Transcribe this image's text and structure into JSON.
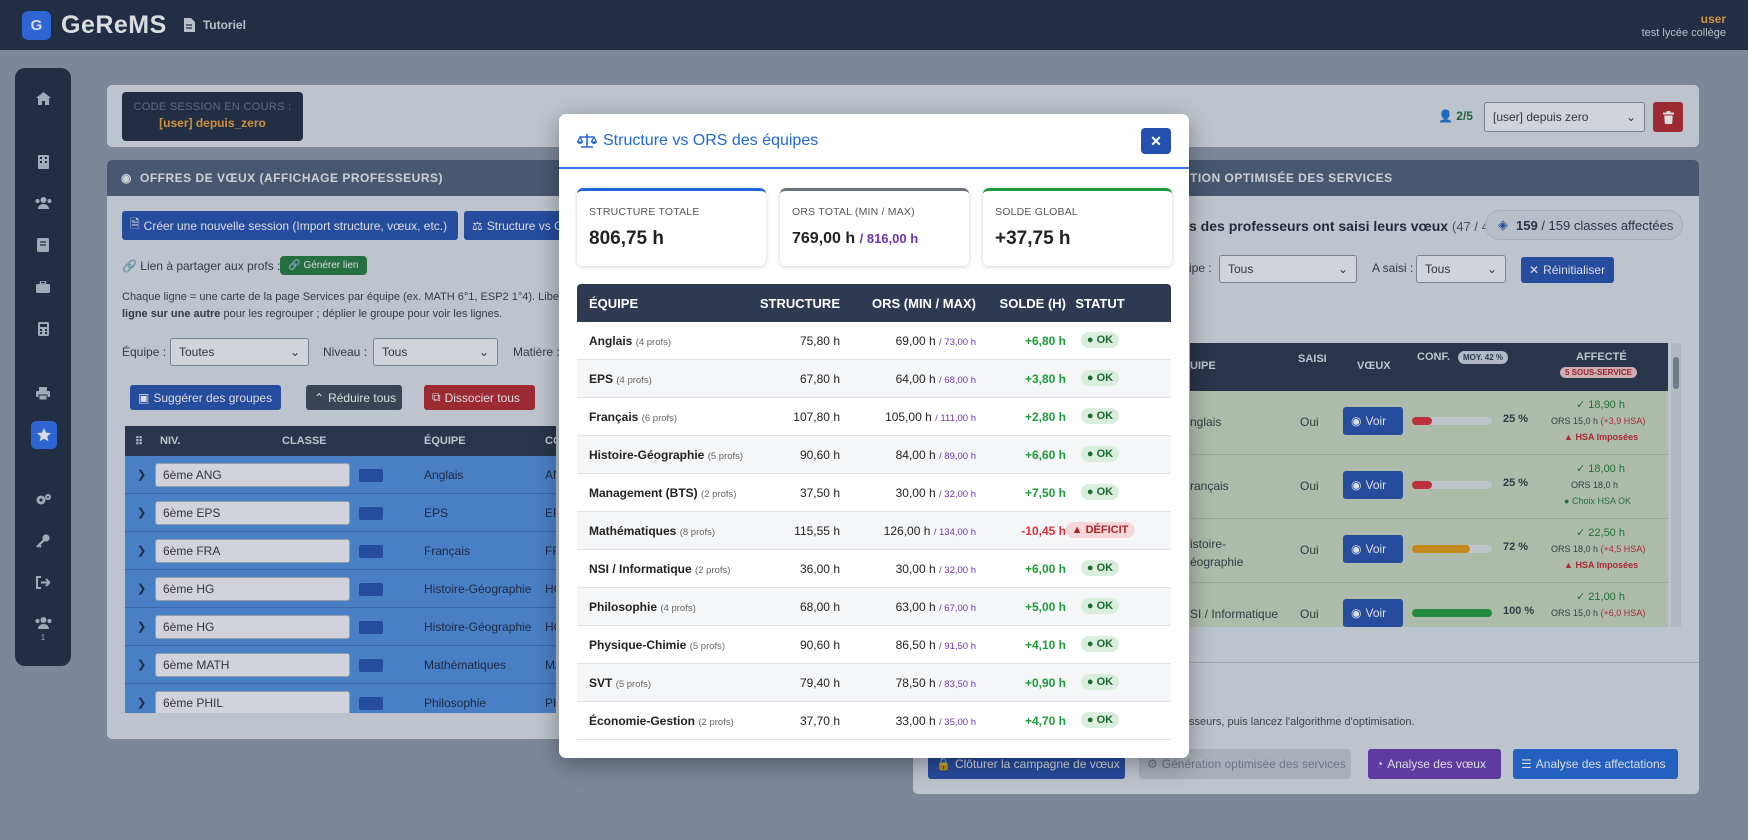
{
  "app": {
    "brand": "GeReMS",
    "logo_letter": "G",
    "tutorial": "Tutoriel",
    "user_name": "user",
    "user_establishment": "test lycée collège"
  },
  "session": {
    "label": "CODE SESSION EN COURS :",
    "value": "[user] depuis_zero",
    "profs_count": "2/5",
    "session_select": "[user] depuis zero"
  },
  "left_panel": {
    "title": "OFFRES DE VŒUX (AFFICHAGE PROFESSEURS)",
    "btn_new_session": "Créer une nouvelle session (Import structure, vœux, etc.)",
    "btn_structure": "Structure vs ORS des équipes",
    "share_label": "Lien à partager aux profs :",
    "share_btn": "Générer lien",
    "help_line1": "Chaque ligne = une carte de la page Services par équipe (ex. MATH 6°1, ESP2 1°4). Libellez",
    "help_bold": "ligne sur une autre",
    "help_line2": "pour les regrouper ; déplier le groupe pour voir les lignes.",
    "filter_team_label": "Équipe :",
    "filter_team_value": "Toutes",
    "filter_level_label": "Niveau :",
    "filter_level_value": "Tous",
    "filter_subject_label": "Matière :",
    "btn_suggest": "Suggérer des groupes",
    "btn_collapse": "Réduire tous",
    "btn_dissociate": "Dissocier tous",
    "columns": {
      "niv": "NIV.",
      "classe": "CLASSE",
      "equipe": "ÉQUIPE",
      "code": "CO"
    },
    "rows": [
      {
        "classe": "6ème  ANG",
        "equipe": "Anglais",
        "code": "AN"
      },
      {
        "classe": "6ème  EPS",
        "equipe": "EPS",
        "code": "EP"
      },
      {
        "classe": "6ème  FRA",
        "equipe": "Français",
        "code": "FR"
      },
      {
        "classe": "6ème  HG",
        "equipe": "Histoire-Géographie",
        "code": "HG"
      },
      {
        "classe": "6ème  HG",
        "equipe": "Histoire-Géographie",
        "code": "HG"
      },
      {
        "classe": "6ème  MATH",
        "equipe": "Mathématiques",
        "code": "MA"
      },
      {
        "classe": "6ème  PHIL",
        "equipe": "Philosophie",
        "code": "PH"
      }
    ]
  },
  "right_panel": {
    "title": "TION OPTIMISÉE DES SERVICES",
    "status_text": "s des professeurs ont saisi leurs vœux",
    "status_count": "(47 / 47)",
    "classes_num": "159",
    "classes_text": "/ 159 classes affectées",
    "filter_team_label": "ipe :",
    "filter_team_value": "Tous",
    "filter_saisi_label": "A saisi :",
    "filter_saisi_value": "Tous",
    "btn_reset": "Réinitialiser",
    "columns": {
      "equipe": "UIPE",
      "saisi": "SAISI",
      "voeux": "VŒUX",
      "conf": "CONF.",
      "conf_badge": "MOY. 42 %",
      "affecte": "AFFECTÉ",
      "affecte_badge": "5 SOUS-SERVICE"
    },
    "rows": [
      {
        "equipe": "nglais",
        "saisi": "Oui",
        "btn": "Voir",
        "conf": 25,
        "conf_txt": "25 %",
        "aff1": "✓ 18,90 h",
        "aff2": "ORS 15,0 h",
        "aff2b": "(+3,9 HSA)",
        "aff3": "HSA Imposées"
      },
      {
        "equipe": "rançais",
        "saisi": "Oui",
        "btn": "Voir",
        "conf": 25,
        "conf_txt": "25 %",
        "aff1": "✓ 18,00 h",
        "aff2": "ORS 18,0 h",
        "aff2b": "",
        "aff3": "Choix HSA OK"
      },
      {
        "equipe": "istoire-\néographie",
        "saisi": "Oui",
        "btn": "Voir",
        "conf": 72,
        "conf_txt": "72 %",
        "aff1": "✓ 22,50 h",
        "aff2": "ORS 18,0 h",
        "aff2b": "(+4,5 HSA)",
        "aff3": "HSA Imposées"
      },
      {
        "equipe": "SI / Informatique",
        "saisi": "Oui",
        "btn": "Voir",
        "conf": 100,
        "conf_txt": "100 %",
        "aff1": "✓ 21,00 h",
        "aff2": "ORS 15,0 h",
        "aff2b": "(+6,0 HSA)",
        "aff3": ""
      }
    ],
    "hint": "sseurs, puis lancez l'algorithme d'optimisation.",
    "btn_close_campaign": "Clôturer la campagne de vœux",
    "btn_generation": "Génération optimisée des services",
    "btn_analyse_voeux": "Analyse des vœux",
    "btn_analyse_aff": "Analyse des affectations"
  },
  "modal": {
    "title": "Structure vs ORS des équipes",
    "stats": [
      {
        "label": "STRUCTURE TOTALE",
        "value": "806,75 h",
        "extra": ""
      },
      {
        "label": "ORS TOTAL (MIN / MAX)",
        "value": "769,00 h",
        "extra": "/ 816,00 h"
      },
      {
        "label": "SOLDE GLOBAL",
        "value": "+37,75 h",
        "extra": ""
      }
    ],
    "columns": {
      "equipe": "ÉQUIPE",
      "structure": "STRUCTURE",
      "ors": "ORS (MIN / MAX)",
      "solde": "SOLDE (H)",
      "statut": "STATUT"
    },
    "rows": [
      {
        "team": "Anglais",
        "profs": "(4 profs)",
        "structure": "75,80 h",
        "ors": "69,00 h",
        "ors_max": "/ 73,00 h",
        "solde": "+6,80 h",
        "status": "OK"
      },
      {
        "team": "EPS",
        "profs": "(4 profs)",
        "structure": "67,80 h",
        "ors": "64,00 h",
        "ors_max": "/ 68,00 h",
        "solde": "+3,80 h",
        "status": "OK"
      },
      {
        "team": "Français",
        "profs": "(6 profs)",
        "structure": "107,80 h",
        "ors": "105,00 h",
        "ors_max": "/ 111,00 h",
        "solde": "+2,80 h",
        "status": "OK"
      },
      {
        "team": "Histoire-Géographie",
        "profs": "(5 profs)",
        "structure": "90,60 h",
        "ors": "84,00 h",
        "ors_max": "/ 89,00 h",
        "solde": "+6,60 h",
        "status": "OK"
      },
      {
        "team": "Management (BTS)",
        "profs": "(2 profs)",
        "structure": "37,50 h",
        "ors": "30,00 h",
        "ors_max": "/ 32,00 h",
        "solde": "+7,50 h",
        "status": "OK"
      },
      {
        "team": "Mathématiques",
        "profs": "(8 profs)",
        "structure": "115,55 h",
        "ors": "126,00 h",
        "ors_max": "/ 134,00 h",
        "solde": "-10,45 h",
        "status": "DÉFICIT"
      },
      {
        "team": "NSI / Informatique",
        "profs": "(2 profs)",
        "structure": "36,00 h",
        "ors": "30,00 h",
        "ors_max": "/ 32,00 h",
        "solde": "+6,00 h",
        "status": "OK"
      },
      {
        "team": "Philosophie",
        "profs": "(4 profs)",
        "structure": "68,00 h",
        "ors": "63,00 h",
        "ors_max": "/ 67,00 h",
        "solde": "+5,00 h",
        "status": "OK"
      },
      {
        "team": "Physique-Chimie",
        "profs": "(5 profs)",
        "structure": "90,60 h",
        "ors": "86,50 h",
        "ors_max": "/ 91,50 h",
        "solde": "+4,10 h",
        "status": "OK"
      },
      {
        "team": "SVT",
        "profs": "(5 profs)",
        "structure": "79,40 h",
        "ors": "78,50 h",
        "ors_max": "/ 83,50 h",
        "solde": "+0,90 h",
        "status": "OK"
      },
      {
        "team": "Économie-Gestion",
        "profs": "(2 profs)",
        "structure": "37,70 h",
        "ors": "33,00 h",
        "ors_max": "/ 35,00 h",
        "solde": "+4,70 h",
        "status": "OK"
      }
    ]
  },
  "colors": {
    "accent": "#2268d8",
    "positive": "#1e9b3a",
    "negative": "#d9303b",
    "purple": "#6a35b4",
    "navbar": "#1e2b43"
  }
}
